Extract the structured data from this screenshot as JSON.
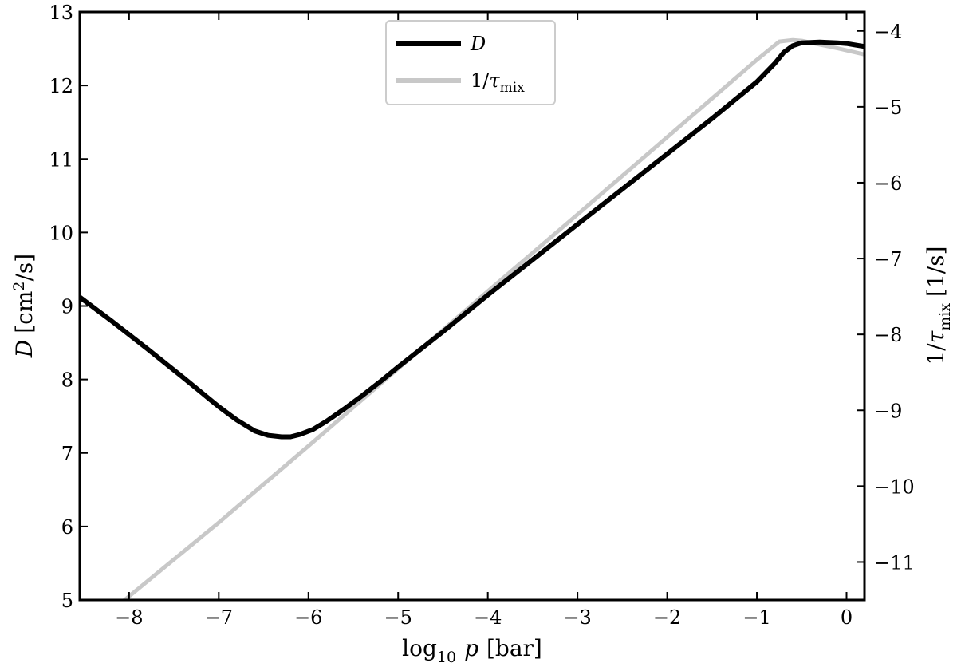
{
  "chart_data": {
    "type": "line",
    "xlabel": {
      "base": "log",
      "sub": "10",
      "var": "p",
      "unit": "[bar]"
    },
    "ylabel_left": {
      "var": "D",
      "unit": "[cm",
      "sup": "2",
      "unit_tail": "/s]"
    },
    "ylabel_right": {
      "prefix": "1/",
      "var": "τ",
      "sub": "mix",
      "unit": "[1/s]"
    },
    "xlim": [
      -8.55,
      0.2
    ],
    "ylim_left": [
      5,
      13
    ],
    "ylim_right": [
      -11.5,
      -3.75
    ],
    "x_ticks": [
      -8,
      -7,
      -6,
      -5,
      -4,
      -3,
      -2,
      -1,
      0
    ],
    "x_tick_labels": [
      "−8",
      "−7",
      "−6",
      "−5",
      "−4",
      "−3",
      "−2",
      "−1",
      "0"
    ],
    "y_left_ticks": [
      5,
      6,
      7,
      8,
      9,
      10,
      11,
      12,
      13
    ],
    "y_left_tick_labels": [
      "5",
      "6",
      "7",
      "8",
      "9",
      "10",
      "11",
      "12",
      "13"
    ],
    "y_right_ticks": [
      -11,
      -10,
      -9,
      -8,
      -7,
      -6,
      -5,
      -4
    ],
    "y_right_tick_labels": [
      "−11",
      "−10",
      "−9",
      "−8",
      "−7",
      "−6",
      "−5",
      "−4"
    ],
    "legend_position": "upper-center",
    "series": [
      {
        "name": "D",
        "axis": "left",
        "color": "#000000",
        "x": [
          -8.55,
          -8.2,
          -7.8,
          -7.4,
          -7.0,
          -6.8,
          -6.6,
          -6.45,
          -6.3,
          -6.2,
          -6.1,
          -5.95,
          -5.8,
          -5.6,
          -5.4,
          -5.2,
          -5.0,
          -4.5,
          -4.0,
          -3.5,
          -3.0,
          -2.5,
          -2.0,
          -1.5,
          -1.0,
          -0.8,
          -0.7,
          -0.6,
          -0.5,
          -0.3,
          -0.1,
          0.0,
          0.1,
          0.2
        ],
        "y": [
          9.12,
          8.8,
          8.42,
          8.03,
          7.63,
          7.45,
          7.3,
          7.24,
          7.22,
          7.22,
          7.25,
          7.32,
          7.43,
          7.6,
          7.78,
          7.97,
          8.17,
          8.65,
          9.15,
          9.63,
          10.11,
          10.59,
          11.07,
          11.55,
          12.05,
          12.3,
          12.45,
          12.54,
          12.58,
          12.59,
          12.58,
          12.57,
          12.55,
          12.53
        ]
      },
      {
        "name": "1/τmix",
        "axis": "right",
        "color": "#c8c8c8",
        "x": [
          -8.05,
          -7.0,
          -6.0,
          -5.0,
          -4.0,
          -3.0,
          -2.0,
          -1.0,
          -0.75,
          -0.6,
          -0.5,
          -0.3,
          -0.1,
          0.2
        ],
        "y": [
          -11.5,
          -10.48,
          -9.47,
          -8.45,
          -7.43,
          -6.42,
          -5.4,
          -4.38,
          -4.14,
          -4.12,
          -4.13,
          -4.18,
          -4.23,
          -4.31
        ]
      }
    ]
  }
}
